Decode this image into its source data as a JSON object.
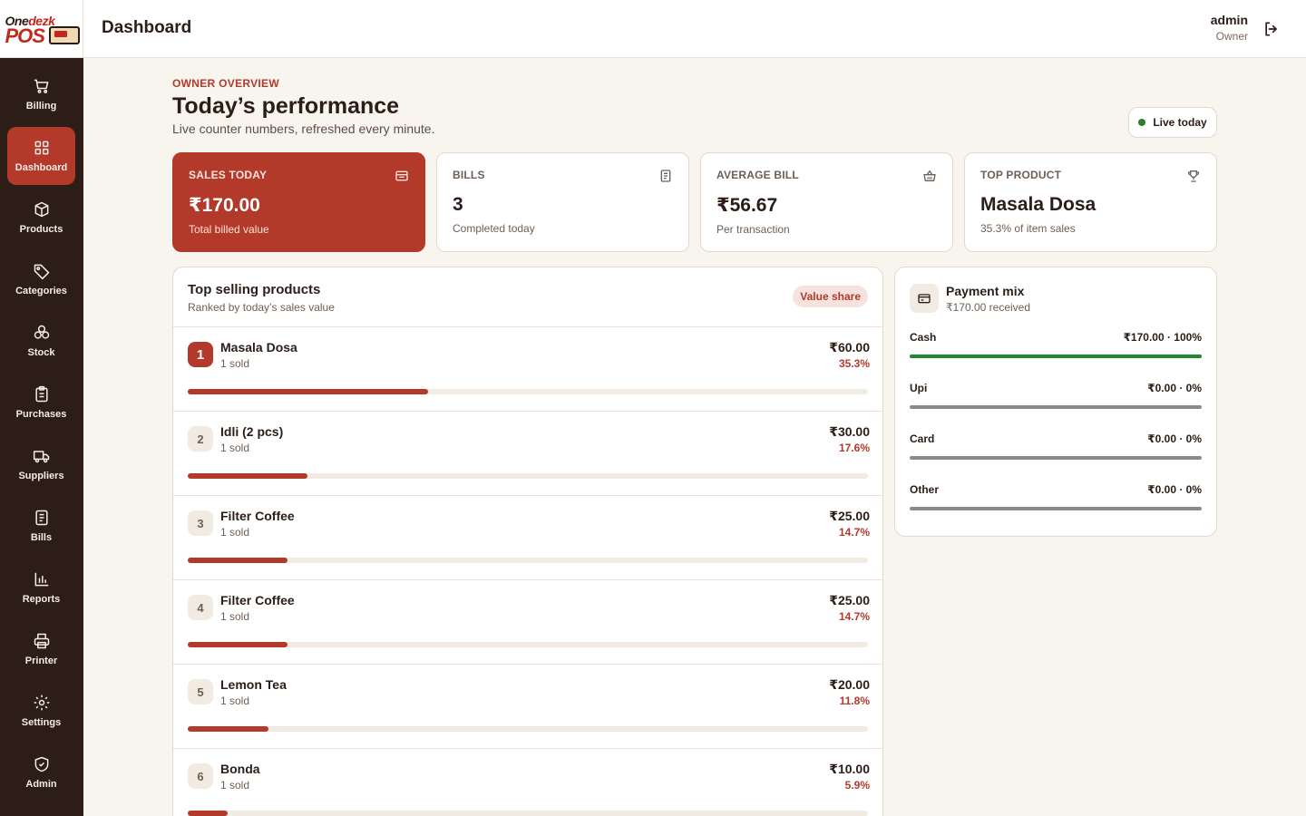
{
  "brand": {
    "logo_one": "One",
    "logo_dezk": "dezk",
    "logo_pos": "POS"
  },
  "header": {
    "title": "Dashboard",
    "user_name": "admin",
    "user_role": "Owner"
  },
  "sidebar": {
    "items": [
      {
        "label": "Billing",
        "icon": "cart-icon"
      },
      {
        "label": "Dashboard",
        "icon": "grid-icon",
        "active": true
      },
      {
        "label": "Products",
        "icon": "box-icon"
      },
      {
        "label": "Categories",
        "icon": "tag-icon"
      },
      {
        "label": "Stock",
        "icon": "stack-icon"
      },
      {
        "label": "Purchases",
        "icon": "clipboard-icon"
      },
      {
        "label": "Suppliers",
        "icon": "truck-icon"
      },
      {
        "label": "Bills",
        "icon": "receipt-icon"
      },
      {
        "label": "Reports",
        "icon": "chart-icon"
      },
      {
        "label": "Printer",
        "icon": "printer-icon"
      },
      {
        "label": "Settings",
        "icon": "gear-icon"
      },
      {
        "label": "Admin",
        "icon": "shield-icon"
      }
    ]
  },
  "overview": {
    "eyebrow": "OWNER OVERVIEW",
    "title": "Today’s performance",
    "subtitle": "Live counter numbers, refreshed every minute.",
    "live_badge": "Live today"
  },
  "stats": [
    {
      "label": "SALES TODAY",
      "value": "₹170.00",
      "note": "Total billed value",
      "icon": "wallet-icon"
    },
    {
      "label": "BILLS",
      "value": "3",
      "note": "Completed today",
      "icon": "receipt-icon"
    },
    {
      "label": "AVERAGE BILL",
      "value": "₹56.67",
      "note": "Per transaction",
      "icon": "basket-icon"
    },
    {
      "label": "TOP PRODUCT",
      "value": "Masala Dosa",
      "note": "35.3% of item sales",
      "icon": "trophy-icon"
    }
  ],
  "top_products": {
    "title": "Top selling products",
    "subtitle": "Ranked by today’s sales value",
    "badge": "Value share",
    "rows": [
      {
        "rank": "1",
        "name": "Masala Dosa",
        "sold": "1 sold",
        "amount": "₹60.00",
        "pct": "35.3%",
        "share": 0.353
      },
      {
        "rank": "2",
        "name": "Idli (2 pcs)",
        "sold": "1 sold",
        "amount": "₹30.00",
        "pct": "17.6%",
        "share": 0.176
      },
      {
        "rank": "3",
        "name": "Filter Coffee",
        "sold": "1 sold",
        "amount": "₹25.00",
        "pct": "14.7%",
        "share": 0.147
      },
      {
        "rank": "4",
        "name": "Filter Coffee",
        "sold": "1 sold",
        "amount": "₹25.00",
        "pct": "14.7%",
        "share": 0.147
      },
      {
        "rank": "5",
        "name": "Lemon Tea",
        "sold": "1 sold",
        "amount": "₹20.00",
        "pct": "11.8%",
        "share": 0.118
      },
      {
        "rank": "6",
        "name": "Bonda",
        "sold": "1 sold",
        "amount": "₹10.00",
        "pct": "5.9%",
        "share": 0.059
      }
    ]
  },
  "payment_mix": {
    "title": "Payment mix",
    "subtitle": "₹170.00 received",
    "rows": [
      {
        "name": "Cash",
        "value": "₹170.00 · 100%",
        "share": 1.0
      },
      {
        "name": "Upi",
        "value": "₹0.00 · 0%",
        "share": 0
      },
      {
        "name": "Card",
        "value": "₹0.00 · 0%",
        "share": 0
      },
      {
        "name": "Other",
        "value": "₹0.00 · 0%",
        "share": 0
      }
    ]
  },
  "colors": {
    "accent": "#b3392a",
    "sidebar": "#2d1d17",
    "success": "#1f8a2e",
    "background": "#f8f4ee"
  }
}
